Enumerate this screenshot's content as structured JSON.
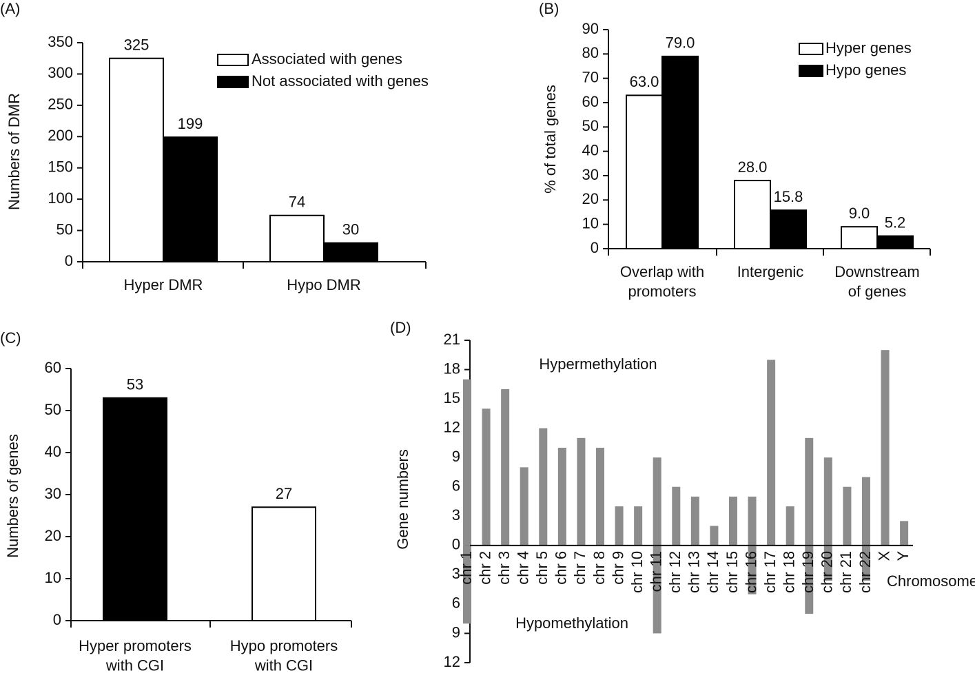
{
  "chart_data": [
    {
      "type": "bar",
      "label": "(A)",
      "ylabel": "Numbers of DMR",
      "categories": [
        "Hyper DMR",
        "Hypo DMR"
      ],
      "series": [
        {
          "name": "Associated with genes",
          "color": "#ffffff",
          "values": [
            325,
            74
          ]
        },
        {
          "name": "Not associated with genes",
          "color": "#000000",
          "values": [
            199,
            30
          ]
        }
      ],
      "ylim": [
        0,
        350
      ],
      "yticks": [
        0,
        50,
        100,
        150,
        200,
        250,
        300,
        350
      ]
    },
    {
      "type": "bar",
      "label": "(B)",
      "ylabel": "% of total genes",
      "categories": [
        "Overlap with\npromoters",
        "Intergenic",
        "Downstream\nof genes"
      ],
      "series": [
        {
          "name": "Hyper genes",
          "color": "#ffffff",
          "values": [
            63.0,
            28.0,
            9.0
          ],
          "value_labels": [
            "63.0",
            "28.0",
            "9.0"
          ]
        },
        {
          "name": "Hypo genes",
          "color": "#000000",
          "values": [
            79.0,
            15.8,
            5.2
          ],
          "value_labels": [
            "79.0",
            "15.8",
            "5.2"
          ]
        }
      ],
      "ylim": [
        0,
        90
      ],
      "yticks": [
        0,
        10,
        20,
        30,
        40,
        50,
        60,
        70,
        80,
        90
      ]
    },
    {
      "type": "bar",
      "label": "(C)",
      "ylabel": "Numbers of genes",
      "categories": [
        "Hyper promoters\nwith CGI",
        "Hypo promoters\nwith CGI"
      ],
      "values": [
        53,
        27
      ],
      "colors": [
        "#000000",
        "#ffffff"
      ],
      "ylim": [
        0,
        60
      ],
      "yticks": [
        0,
        10,
        20,
        30,
        40,
        50,
        60
      ]
    },
    {
      "type": "diverging_bar",
      "label": "(D)",
      "ylabel": "Gene numbers",
      "xlabel": "Chromosome",
      "annotations": [
        "Hypermethylation",
        "Hypomethylation"
      ],
      "categories": [
        "chr 1",
        "chr 2",
        "chr 3",
        "chr 4",
        "chr 5",
        "chr 6",
        "chr 7",
        "chr 8",
        "chr 9",
        "chr 10",
        "chr 11",
        "chr 12",
        "chr 13",
        "chr 14",
        "chr 15",
        "chr 16",
        "chr 17",
        "chr 18",
        "chr 19",
        "chr 20",
        "chr 21",
        "chr 22",
        "X",
        "Y"
      ],
      "series": [
        {
          "name": "Hypermethylation",
          "color": "#8c8c8c",
          "values": [
            17,
            14,
            16,
            8,
            12,
            10,
            11,
            10,
            4,
            4,
            9,
            6,
            5,
            2,
            5,
            5,
            19,
            4,
            11,
            9,
            6,
            7,
            20,
            2.5
          ]
        },
        {
          "name": "Hypomethylation",
          "color": "#8c8c8c",
          "values": [
            -8,
            0,
            0,
            0,
            0,
            0,
            0,
            0,
            0,
            0,
            -9,
            0,
            0,
            0,
            0,
            -5,
            0,
            0,
            -7,
            -3.6,
            0,
            -3.6,
            0,
            0
          ]
        }
      ],
      "ylim": [
        -12,
        21
      ],
      "yticks": [
        {
          "value": -12,
          "label": "12"
        },
        {
          "value": -9,
          "label": "9"
        },
        {
          "value": -6,
          "label": "6"
        },
        {
          "value": -3,
          "label": "3"
        },
        0,
        3,
        6,
        9,
        12,
        15,
        18,
        21
      ]
    }
  ]
}
